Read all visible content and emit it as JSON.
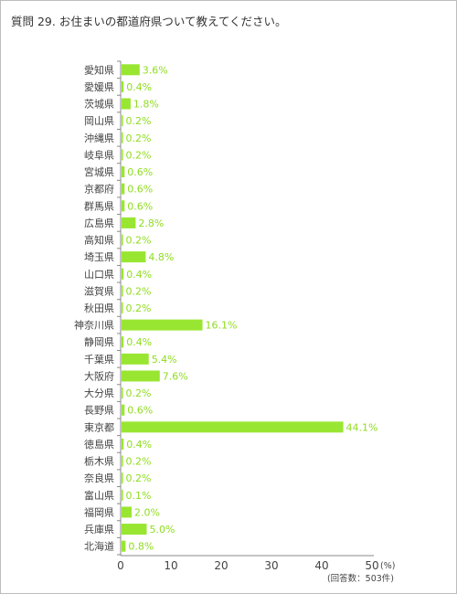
{
  "title": {
    "number": "質問 29.",
    "text": "お住まいの都道府県ついて教えてください。"
  },
  "chart_data": {
    "type": "bar",
    "orientation": "horizontal",
    "categories": [
      "愛知県",
      "愛媛県",
      "茨城県",
      "岡山県",
      "沖縄県",
      "岐阜県",
      "宮城県",
      "京都府",
      "群馬県",
      "広島県",
      "高知県",
      "埼玉県",
      "山口県",
      "滋賀県",
      "秋田県",
      "神奈川県",
      "静岡県",
      "千葉県",
      "大阪府",
      "大分県",
      "長野県",
      "東京都",
      "徳島県",
      "栃木県",
      "奈良県",
      "富山県",
      "福岡県",
      "兵庫県",
      "北海道"
    ],
    "values": [
      3.6,
      0.4,
      1.8,
      0.2,
      0.2,
      0.2,
      0.6,
      0.6,
      0.6,
      2.8,
      0.2,
      4.8,
      0.4,
      0.2,
      0.2,
      16.1,
      0.4,
      5.4,
      7.6,
      0.2,
      0.6,
      44.1,
      0.4,
      0.2,
      0.2,
      0.1,
      2.0,
      5.0,
      0.8
    ],
    "value_labels": [
      "3.6%",
      "0.4%",
      "1.8%",
      "0.2%",
      "0.2%",
      "0.2%",
      "0.6%",
      "0.6%",
      "0.6%",
      "2.8%",
      "0.2%",
      "4.8%",
      "0.4%",
      "0.2%",
      "0.2%",
      "16.1%",
      "0.4%",
      "5.4%",
      "7.6%",
      "0.2%",
      "0.6%",
      "44.1%",
      "0.4%",
      "0.2%",
      "0.2%",
      "0.1%",
      "2.0%",
      "5.0%",
      "0.8%"
    ],
    "xlim": [
      0,
      50
    ],
    "x_ticks": [
      "0",
      "10",
      "20",
      "30",
      "40",
      "50"
    ],
    "x_unit": "(%)",
    "note": "(回答数：503件)",
    "grid": false,
    "bar_color": "#99e632",
    "label_color": "#8fdc1e"
  }
}
